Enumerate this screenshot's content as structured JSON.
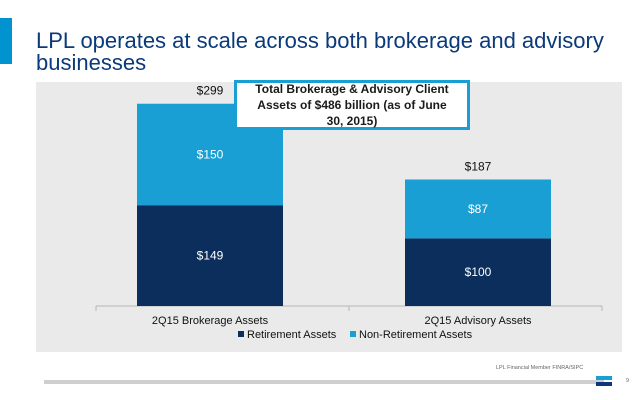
{
  "slide": {
    "title": "LPL operates at scale across both brokerage and advisory businesses",
    "callout": "Total Brokerage & Advisory Client Assets of $486 billion (as of June 30, 2015)",
    "footer_text": "LPL Financial  Member FINRA/SIPC",
    "page_number": "9"
  },
  "colors": {
    "accent": "#0093d0",
    "retirement": "#0c2e5c",
    "non_retirement": "#1a9fd5",
    "panel": "#eaeaea"
  },
  "chart_data": {
    "type": "bar",
    "stacked": true,
    "categories": [
      "2Q15 Brokerage Assets",
      "2Q15 Advisory Assets"
    ],
    "series": [
      {
        "name": "Retirement Assets",
        "values": [
          149,
          100
        ],
        "labels": [
          "$149",
          "$100"
        ]
      },
      {
        "name": "Non-Retirement Assets",
        "values": [
          150,
          87
        ],
        "labels": [
          "$150",
          "$87"
        ]
      }
    ],
    "totals": [
      299,
      187
    ],
    "total_labels": [
      "$299",
      "$187"
    ],
    "ylim": [
      0,
      340
    ],
    "legend_position": "bottom",
    "grid": false
  }
}
